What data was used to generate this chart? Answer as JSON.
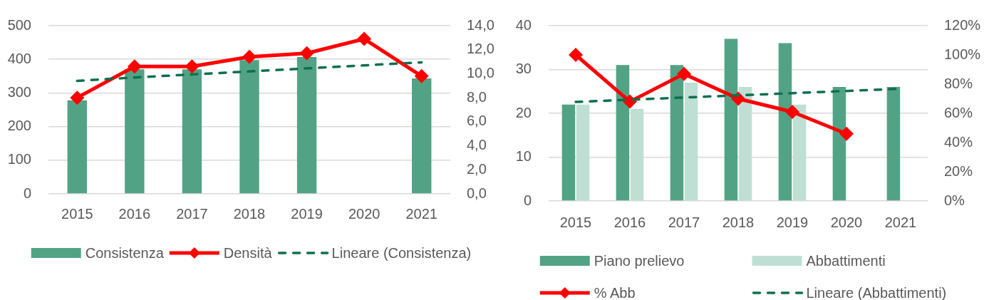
{
  "chart_data": [
    {
      "type": "bar",
      "categories": [
        "2015",
        "2016",
        "2017",
        "2018",
        "2019",
        "2020",
        "2021"
      ],
      "series": [
        {
          "name": "Consistenza",
          "color": "#52a385",
          "values": [
            278,
            370,
            370,
            398,
            407,
            null,
            343
          ]
        },
        {
          "name": "Densità",
          "type": "line",
          "axis": "y2",
          "color": "#ff0000",
          "values": [
            8.0,
            10.6,
            10.6,
            11.4,
            11.7,
            12.9,
            9.8
          ]
        },
        {
          "name": "Lineare (Consistenza)",
          "type": "line",
          "color": "#0f6e50",
          "line_style": "dashed",
          "marker": "none",
          "values": [
            336,
            346,
            355,
            364,
            373,
            382,
            391
          ]
        }
      ],
      "ylim": [
        0,
        500
      ],
      "yticks": [
        0,
        100,
        200,
        300,
        400,
        500
      ],
      "y2lim": [
        0,
        14
      ],
      "y2ticks": [
        {
          "value": 0,
          "label": "0,0"
        },
        {
          "value": 2,
          "label": "2,0"
        },
        {
          "value": 4,
          "label": "4,0"
        },
        {
          "value": 6,
          "label": "6,0"
        },
        {
          "value": 8,
          "label": "8,0"
        },
        {
          "value": 10,
          "label": "10,0"
        },
        {
          "value": 12,
          "label": "12,0"
        },
        {
          "value": 14,
          "label": "14,0"
        }
      ],
      "grid": "y",
      "legend": "bottom",
      "marker": "diamond"
    },
    {
      "type": "bar",
      "categories": [
        "2015",
        "2016",
        "2017",
        "2018",
        "2019",
        "2020",
        "2021"
      ],
      "series": [
        {
          "name": "Piano prelievo",
          "color": "#52a385",
          "values": [
            22,
            31,
            31,
            37,
            36,
            26,
            26
          ]
        },
        {
          "name": "Abbattimenti",
          "color": "#bfdfd4",
          "values": [
            22,
            21,
            27,
            26,
            22,
            null,
            null
          ]
        },
        {
          "name": "% Abb",
          "type": "line",
          "axis": "y2",
          "color": "#ff0000",
          "values": [
            100,
            68,
            87,
            70,
            61,
            46,
            null
          ]
        },
        {
          "name": "Lineare (Abbattimenti)",
          "type": "line",
          "color": "#0f6e50",
          "line_style": "dashed",
          "marker": "none",
          "values": [
            22.6,
            23.1,
            23.6,
            24.1,
            24.6,
            25.1,
            25.6
          ]
        }
      ],
      "ylim": [
        0,
        40
      ],
      "yticks": [
        0,
        10,
        20,
        30,
        40
      ],
      "y2lim": [
        0,
        120
      ],
      "y2ticks": [
        {
          "value": 0,
          "label": "0%"
        },
        {
          "value": 20,
          "label": "20%"
        },
        {
          "value": 40,
          "label": "40%"
        },
        {
          "value": 60,
          "label": "60%"
        },
        {
          "value": 80,
          "label": "80%"
        },
        {
          "value": 100,
          "label": "100%"
        },
        {
          "value": 120,
          "label": "120%"
        }
      ],
      "grid": "y",
      "legend": "bottom",
      "marker": "diamond"
    }
  ]
}
